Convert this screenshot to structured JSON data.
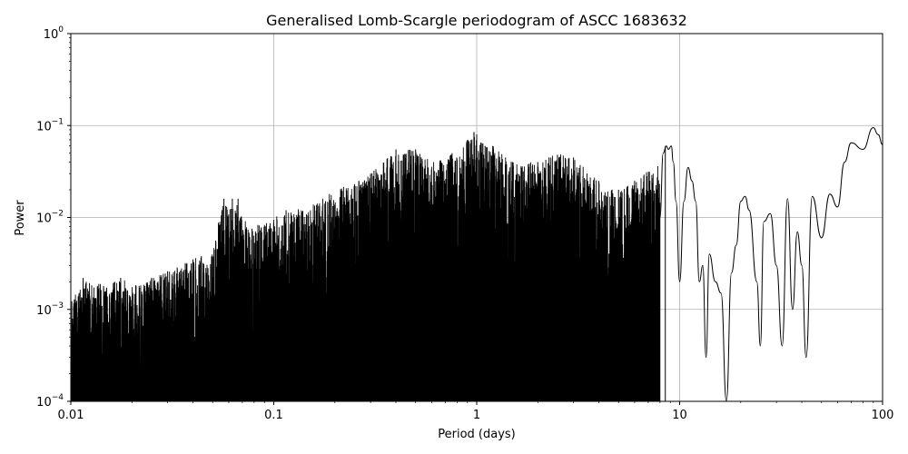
{
  "chart_data": {
    "type": "line",
    "title": "Generalised Lomb-Scargle periodogram of ASCC 1683632",
    "xlabel": "Period (days)",
    "ylabel": "Power",
    "xscale": "log",
    "yscale": "log",
    "xlim": [
      0.01,
      100
    ],
    "ylim": [
      0.0001,
      1
    ],
    "grid": true,
    "x_ticks": [
      {
        "value": 0.01,
        "label": "0.01"
      },
      {
        "value": 0.1,
        "label": "0.1"
      },
      {
        "value": 1,
        "label": "1"
      },
      {
        "value": 10,
        "label": "10"
      },
      {
        "value": 100,
        "label": "100"
      }
    ],
    "y_ticks": [
      {
        "value": 0.0001,
        "base": "10",
        "exp": "−4"
      },
      {
        "value": 0.001,
        "base": "10",
        "exp": "−3"
      },
      {
        "value": 0.01,
        "base": "10",
        "exp": "−2"
      },
      {
        "value": 0.1,
        "base": "10",
        "exp": "−1"
      },
      {
        "value": 1,
        "base": "10",
        "exp": "0"
      }
    ],
    "line_color": "#000000",
    "envelope": [
      [
        0.01,
        0.0012
      ],
      [
        0.0115,
        0.0022
      ],
      [
        0.015,
        0.0018
      ],
      [
        0.018,
        0.0022
      ],
      [
        0.02,
        0.0018
      ],
      [
        0.025,
        0.0022
      ],
      [
        0.03,
        0.0026
      ],
      [
        0.04,
        0.0035
      ],
      [
        0.05,
        0.0045
      ],
      [
        0.056,
        0.015
      ],
      [
        0.06,
        0.015
      ],
      [
        0.065,
        0.015
      ],
      [
        0.07,
        0.01
      ],
      [
        0.08,
        0.008
      ],
      [
        0.1,
        0.01
      ],
      [
        0.12,
        0.012
      ],
      [
        0.15,
        0.013
      ],
      [
        0.2,
        0.02
      ],
      [
        0.25,
        0.025
      ],
      [
        0.3,
        0.03
      ],
      [
        0.4,
        0.055
      ],
      [
        0.5,
        0.055
      ],
      [
        0.6,
        0.04
      ],
      [
        0.7,
        0.045
      ],
      [
        0.8,
        0.055
      ],
      [
        0.95,
        0.085
      ],
      [
        1.0,
        0.08
      ],
      [
        1.1,
        0.06
      ],
      [
        1.2,
        0.06
      ],
      [
        1.5,
        0.04
      ],
      [
        2.0,
        0.04
      ],
      [
        2.5,
        0.05
      ],
      [
        3.0,
        0.045
      ],
      [
        4.0,
        0.025
      ],
      [
        5.0,
        0.02
      ],
      [
        6.0,
        0.025
      ],
      [
        8.0,
        0.04
      ]
    ],
    "peaks": [
      [
        0.0115,
        0.0022
      ],
      [
        0.0145,
        0.0018
      ],
      [
        0.0176,
        0.0022
      ],
      [
        0.025,
        0.0022
      ],
      [
        0.03,
        0.0026
      ],
      [
        0.04,
        0.0035
      ],
      [
        0.0568,
        0.016
      ],
      [
        0.0625,
        0.016
      ],
      [
        0.0667,
        0.016
      ],
      [
        0.0909,
        0.008
      ],
      [
        0.115,
        0.012
      ],
      [
        0.18,
        0.015
      ],
      [
        0.25,
        0.023
      ],
      [
        0.3,
        0.03
      ],
      [
        0.4,
        0.055
      ],
      [
        0.5,
        0.055
      ],
      [
        0.9,
        0.055
      ],
      [
        0.97,
        0.085
      ],
      [
        1.0,
        0.08
      ],
      [
        1.1,
        0.06
      ],
      [
        1.2,
        0.06
      ],
      [
        1.5,
        0.04
      ],
      [
        2.0,
        0.04
      ],
      [
        2.5,
        0.048
      ],
      [
        3.0,
        0.045
      ],
      [
        4.0,
        0.025
      ],
      [
        5.0,
        0.02
      ],
      [
        6.0,
        0.025
      ],
      [
        8.5,
        0.06
      ]
    ],
    "x": [
      8.0,
      8.3,
      8.6,
      8.8,
      9.1,
      9.3,
      9.6,
      10.0,
      10.5,
      11.0,
      11.5,
      12.0,
      12.5,
      13.0,
      13.5,
      14.0,
      15.0,
      16.0,
      17.0,
      18.0,
      19.0,
      20.0,
      21.0,
      22.0,
      24.0,
      25.0,
      26.0,
      28.0,
      30.0,
      32.0,
      34.0,
      36.0,
      38.0,
      40.0,
      42.0,
      45.0,
      50.0,
      55.0,
      60.0,
      65.0,
      70.0,
      80.0,
      90.0,
      95.0,
      100.0
    ],
    "y": [
      0.01,
      0.05,
      0.06,
      0.055,
      0.06,
      0.04,
      0.015,
      0.002,
      0.015,
      0.035,
      0.025,
      0.015,
      0.002,
      0.003,
      0.0003,
      0.004,
      0.002,
      0.0015,
      0.0001,
      0.0025,
      0.005,
      0.015,
      0.017,
      0.012,
      0.002,
      0.0004,
      0.009,
      0.011,
      0.003,
      0.0004,
      0.016,
      0.001,
      0.007,
      0.003,
      0.0003,
      0.017,
      0.006,
      0.018,
      0.013,
      0.04,
      0.065,
      0.055,
      0.095,
      0.08,
      0.062
    ]
  }
}
